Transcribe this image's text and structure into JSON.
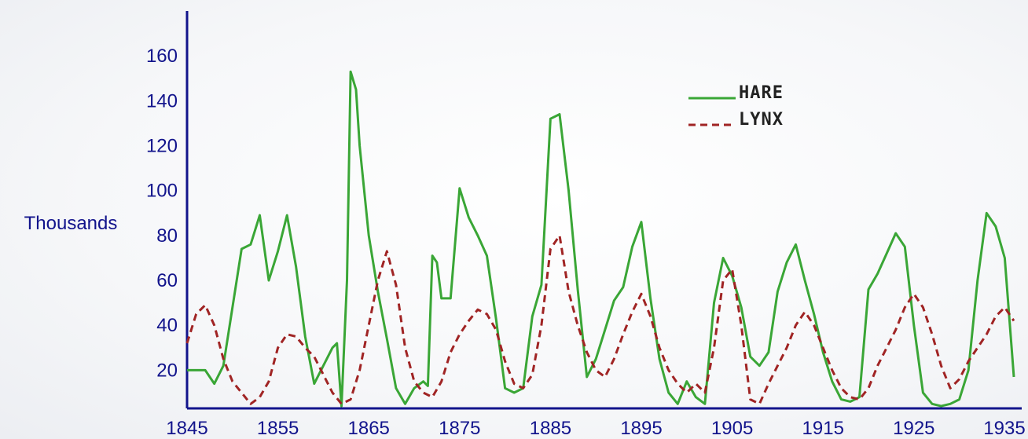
{
  "chart_data": {
    "type": "line",
    "title": "",
    "xlabel": "",
    "ylabel": "Thousands",
    "xlim": [
      1845,
      1936
    ],
    "ylim": [
      3,
      180
    ],
    "x_ticks": [
      "1845",
      "1855",
      "1865",
      "1875",
      "1885",
      "1895",
      "1905",
      "1915",
      "1925",
      "1935"
    ],
    "y_ticks": [
      "20",
      "40",
      "60",
      "80",
      "100",
      "120",
      "140",
      "160"
    ],
    "grid": false,
    "legend_position": "top-right",
    "colors": {
      "axis": "#12148c",
      "hare": "#3aa636",
      "lynx": "#a02424"
    },
    "series": [
      {
        "name": "HARE",
        "style": "solid",
        "points": [
          [
            1845,
            20
          ],
          [
            1847,
            20
          ],
          [
            1848,
            14
          ],
          [
            1849,
            22
          ],
          [
            1850,
            48
          ],
          [
            1851,
            74
          ],
          [
            1852,
            76
          ],
          [
            1853,
            89
          ],
          [
            1854,
            60
          ],
          [
            1855,
            73
          ],
          [
            1856,
            89
          ],
          [
            1857,
            66
          ],
          [
            1858,
            35
          ],
          [
            1859,
            14
          ],
          [
            1860,
            22
          ],
          [
            1861,
            30
          ],
          [
            1861.5,
            32
          ],
          [
            1862,
            4
          ],
          [
            1862.6,
            60
          ],
          [
            1863,
            153
          ],
          [
            1863.6,
            145
          ],
          [
            1864,
            120
          ],
          [
            1865,
            80
          ],
          [
            1866,
            55
          ],
          [
            1867,
            34
          ],
          [
            1868,
            12
          ],
          [
            1869,
            5
          ],
          [
            1870,
            12
          ],
          [
            1871,
            15
          ],
          [
            1871.5,
            13
          ],
          [
            1872,
            71
          ],
          [
            1872.5,
            68
          ],
          [
            1873,
            52
          ],
          [
            1874,
            52
          ],
          [
            1875,
            101
          ],
          [
            1876,
            88
          ],
          [
            1877,
            80
          ],
          [
            1878,
            71
          ],
          [
            1879,
            43
          ],
          [
            1880,
            12
          ],
          [
            1881,
            10
          ],
          [
            1882,
            12
          ],
          [
            1883,
            44
          ],
          [
            1884,
            58
          ],
          [
            1885,
            132
          ],
          [
            1886,
            134
          ],
          [
            1887,
            100
          ],
          [
            1888,
            56
          ],
          [
            1889,
            17
          ],
          [
            1890,
            25
          ],
          [
            1891,
            38
          ],
          [
            1892,
            51
          ],
          [
            1893,
            57
          ],
          [
            1894,
            75
          ],
          [
            1895,
            86
          ],
          [
            1896,
            52
          ],
          [
            1897,
            25
          ],
          [
            1898,
            10
          ],
          [
            1899,
            5
          ],
          [
            1900,
            15
          ],
          [
            1901,
            8
          ],
          [
            1902,
            5
          ],
          [
            1903,
            50
          ],
          [
            1904,
            70
          ],
          [
            1905,
            62
          ],
          [
            1906,
            48
          ],
          [
            1907,
            26
          ],
          [
            1908,
            22
          ],
          [
            1909,
            28
          ],
          [
            1910,
            55
          ],
          [
            1911,
            68
          ],
          [
            1912,
            76
          ],
          [
            1913,
            60
          ],
          [
            1914,
            45
          ],
          [
            1915,
            28
          ],
          [
            1916,
            15
          ],
          [
            1917,
            7
          ],
          [
            1918,
            6
          ],
          [
            1919,
            8
          ],
          [
            1920,
            56
          ],
          [
            1921,
            63
          ],
          [
            1922,
            72
          ],
          [
            1923,
            81
          ],
          [
            1924,
            75
          ],
          [
            1925,
            40
          ],
          [
            1926,
            10
          ],
          [
            1927,
            5
          ],
          [
            1928,
            4
          ],
          [
            1929,
            5
          ],
          [
            1930,
            7
          ],
          [
            1931,
            20
          ],
          [
            1932,
            60
          ],
          [
            1933,
            90
          ],
          [
            1934,
            84
          ],
          [
            1935,
            70
          ],
          [
            1936,
            17
          ]
        ]
      },
      {
        "name": "LYNX",
        "style": "dashed",
        "points": [
          [
            1845,
            32
          ],
          [
            1846,
            45
          ],
          [
            1847,
            49
          ],
          [
            1848,
            40
          ],
          [
            1849,
            25
          ],
          [
            1850,
            15
          ],
          [
            1851,
            10
          ],
          [
            1852,
            5
          ],
          [
            1853,
            8
          ],
          [
            1854,
            15
          ],
          [
            1855,
            30
          ],
          [
            1856,
            36
          ],
          [
            1857,
            35
          ],
          [
            1858,
            30
          ],
          [
            1859,
            26
          ],
          [
            1860,
            18
          ],
          [
            1861,
            10
          ],
          [
            1862,
            5
          ],
          [
            1863,
            7
          ],
          [
            1864,
            20
          ],
          [
            1865,
            40
          ],
          [
            1866,
            60
          ],
          [
            1867,
            73
          ],
          [
            1868,
            58
          ],
          [
            1869,
            30
          ],
          [
            1870,
            15
          ],
          [
            1871,
            10
          ],
          [
            1872,
            8
          ],
          [
            1873,
            15
          ],
          [
            1874,
            28
          ],
          [
            1875,
            36
          ],
          [
            1876,
            42
          ],
          [
            1877,
            47
          ],
          [
            1878,
            45
          ],
          [
            1879,
            38
          ],
          [
            1880,
            24
          ],
          [
            1881,
            14
          ],
          [
            1882,
            12
          ],
          [
            1883,
            18
          ],
          [
            1884,
            40
          ],
          [
            1885,
            74
          ],
          [
            1886,
            80
          ],
          [
            1887,
            55
          ],
          [
            1888,
            40
          ],
          [
            1889,
            28
          ],
          [
            1890,
            20
          ],
          [
            1891,
            17
          ],
          [
            1892,
            25
          ],
          [
            1893,
            36
          ],
          [
            1894,
            46
          ],
          [
            1895,
            54
          ],
          [
            1896,
            44
          ],
          [
            1897,
            30
          ],
          [
            1898,
            20
          ],
          [
            1899,
            14
          ],
          [
            1900,
            10
          ],
          [
            1901,
            14
          ],
          [
            1902,
            10
          ],
          [
            1903,
            30
          ],
          [
            1904,
            60
          ],
          [
            1905,
            65
          ],
          [
            1906,
            40
          ],
          [
            1907,
            7
          ],
          [
            1908,
            5
          ],
          [
            1909,
            14
          ],
          [
            1910,
            22
          ],
          [
            1911,
            30
          ],
          [
            1912,
            40
          ],
          [
            1913,
            46
          ],
          [
            1914,
            40
          ],
          [
            1915,
            30
          ],
          [
            1916,
            20
          ],
          [
            1917,
            12
          ],
          [
            1918,
            8
          ],
          [
            1919,
            7
          ],
          [
            1920,
            12
          ],
          [
            1921,
            22
          ],
          [
            1922,
            30
          ],
          [
            1923,
            38
          ],
          [
            1924,
            48
          ],
          [
            1925,
            54
          ],
          [
            1926,
            48
          ],
          [
            1927,
            36
          ],
          [
            1928,
            22
          ],
          [
            1929,
            12
          ],
          [
            1930,
            16
          ],
          [
            1931,
            24
          ],
          [
            1932,
            30
          ],
          [
            1933,
            36
          ],
          [
            1934,
            44
          ],
          [
            1935,
            48
          ],
          [
            1936,
            42
          ]
        ]
      }
    ]
  }
}
